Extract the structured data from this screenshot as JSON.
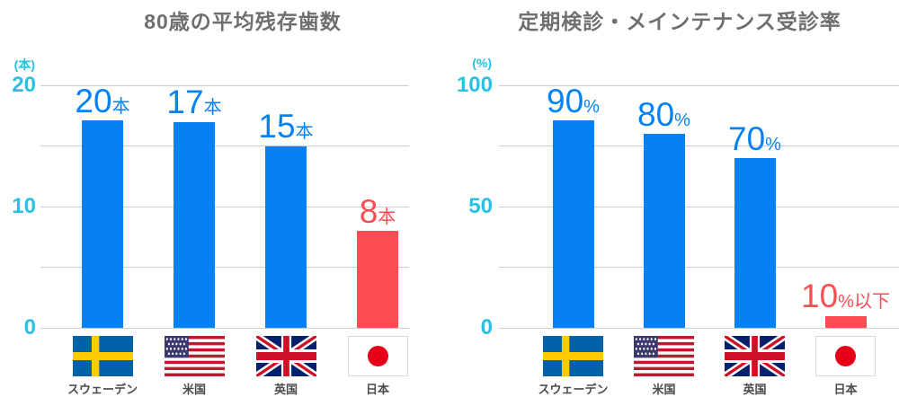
{
  "colors": {
    "bar_blue": "#0681F4",
    "bar_red": "#FB4D52",
    "axis_cyan": "#29C1E3",
    "title_gray": "#6F6F6F",
    "country_gray": "#4B4B4B",
    "grid_gray": "#CDCDCD"
  },
  "chart_data": [
    {
      "type": "bar",
      "title": "80歳の平均残存歯数",
      "unit": "(本)",
      "ylim": [
        0,
        20
      ],
      "ymax": 20,
      "gridline_values": [
        20,
        15,
        10,
        5,
        0
      ],
      "ytick_labels": [
        {
          "value": 20,
          "label": "20"
        },
        {
          "value": 10,
          "label": "10"
        },
        {
          "value": 0,
          "label": "0"
        }
      ],
      "categories": [
        "スウェーデン",
        "米国",
        "英国",
        "日本"
      ],
      "bars": [
        {
          "country": "スウェーデン",
          "flag": "sweden",
          "value": 20,
          "label_num": "20",
          "label_suffix": "本",
          "color": "blue"
        },
        {
          "country": "米国",
          "flag": "usa",
          "value": 17,
          "label_num": "17",
          "label_suffix": "本",
          "color": "blue"
        },
        {
          "country": "英国",
          "flag": "uk",
          "value": 15,
          "label_num": "15",
          "label_suffix": "本",
          "color": "blue"
        },
        {
          "country": "日本",
          "flag": "japan",
          "value": 8,
          "label_num": "8",
          "label_suffix": "本",
          "color": "red"
        }
      ]
    },
    {
      "type": "bar",
      "title": "定期検診・メインテナンス受診率",
      "unit": "(%)",
      "ylim": [
        0,
        100
      ],
      "ymax": 100,
      "gridline_values": [
        100,
        75,
        50,
        25,
        0
      ],
      "ytick_labels": [
        {
          "value": 100,
          "label": "100"
        },
        {
          "value": 50,
          "label": "50"
        },
        {
          "value": 0,
          "label": "0"
        }
      ],
      "categories": [
        "スウェーデン",
        "米国",
        "英国",
        "日本"
      ],
      "bars": [
        {
          "country": "スウェーデン",
          "flag": "sweden",
          "value": 90,
          "label_num": "90",
          "label_suffix": "%",
          "color": "blue"
        },
        {
          "country": "米国",
          "flag": "usa",
          "value": 80,
          "label_num": "80",
          "label_suffix": "%",
          "color": "blue"
        },
        {
          "country": "英国",
          "flag": "uk",
          "value": 70,
          "label_num": "70",
          "label_suffix": "%",
          "color": "blue"
        },
        {
          "country": "日本",
          "flag": "japan",
          "value": "10以下",
          "drawn_value": 5,
          "label_num": "10",
          "label_suffix": "%以下",
          "color": "red"
        }
      ]
    }
  ]
}
